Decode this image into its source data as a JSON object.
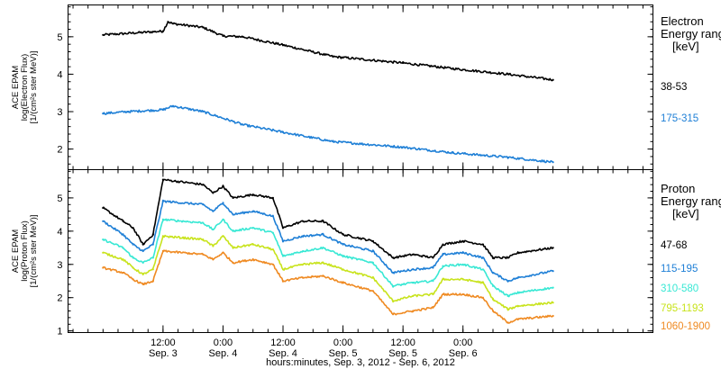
{
  "chart_data": [
    {
      "type": "scatter",
      "panel": "electron",
      "ylabel_lines": [
        "ACE EPAM",
        "log(Electron Flux)",
        "[1/(cm²s ster MeV)]"
      ],
      "ylim": [
        1.45,
        5.85
      ],
      "yticks": [
        2,
        3,
        4,
        5
      ],
      "legend": {
        "title_lines": [
          "Electron",
          "Energy range",
          "[keV]"
        ]
      },
      "series": [
        {
          "name": "38-53",
          "color": "#000000",
          "x": [
            0,
            12,
            13,
            14,
            20,
            24,
            28,
            36,
            46,
            60,
            70,
            81,
            90
          ],
          "y": [
            5.05,
            5.15,
            5.4,
            5.35,
            5.25,
            5.02,
            5.0,
            4.78,
            4.47,
            4.3,
            4.15,
            4.0,
            3.85
          ]
        },
        {
          "name": "175-315",
          "color": "#1e7fd6",
          "x": [
            0,
            5,
            12,
            14,
            20,
            28,
            36,
            46,
            60,
            70,
            81,
            90
          ],
          "y": [
            2.95,
            3.0,
            3.05,
            3.15,
            3.0,
            2.65,
            2.45,
            2.2,
            2.05,
            1.9,
            1.78,
            1.65
          ]
        }
      ]
    },
    {
      "type": "scatter",
      "panel": "proton",
      "ylabel_lines": [
        "ACE EPAM",
        "log(Proton Flux)",
        "[1/(cm²s ster MeV)]"
      ],
      "xlabel": "hours:minutes, Sep.  3, 2012 - Sep.  6, 2012",
      "ylim": [
        0.95,
        5.85
      ],
      "yticks": [
        1,
        2,
        3,
        4,
        5
      ],
      "xlim": [
        -7,
        110
      ],
      "xticks": [
        {
          "x": 12,
          "time": "12:00",
          "date": "Sep. 3"
        },
        {
          "x": 24,
          "time": "0:00",
          "date": "Sep. 4"
        },
        {
          "x": 36,
          "time": "12:00",
          "date": "Sep. 4"
        },
        {
          "x": 48,
          "time": "0:00",
          "date": "Sep. 5"
        },
        {
          "x": 60,
          "time": "12:00",
          "date": "Sep. 5"
        },
        {
          "x": 72,
          "time": "0:00",
          "date": "Sep. 6"
        }
      ],
      "legend": {
        "title_lines": [
          "Proton",
          "Energy range",
          "[keV]"
        ]
      },
      "series": [
        {
          "name": "47-68",
          "color": "#000000",
          "x": [
            0,
            4,
            6,
            8,
            10,
            12,
            20,
            22,
            24,
            26,
            30,
            34,
            36,
            40,
            44,
            48,
            54,
            58,
            62,
            66,
            68,
            72,
            76,
            78,
            81,
            83,
            90
          ],
          "y": [
            4.7,
            4.3,
            4.1,
            3.6,
            3.9,
            5.55,
            5.4,
            5.15,
            5.35,
            5.0,
            5.1,
            5.0,
            4.1,
            4.3,
            4.3,
            3.9,
            3.7,
            3.2,
            3.3,
            3.2,
            3.6,
            3.7,
            3.6,
            3.2,
            3.2,
            3.35,
            3.5
          ]
        },
        {
          "name": "115-195",
          "color": "#1e7fd6",
          "x": [
            0,
            4,
            6,
            8,
            10,
            12,
            20,
            22,
            24,
            26,
            30,
            34,
            36,
            40,
            44,
            48,
            54,
            58,
            62,
            66,
            68,
            72,
            76,
            78,
            81,
            83,
            90
          ],
          "y": [
            4.3,
            3.9,
            3.6,
            3.4,
            3.6,
            4.9,
            4.8,
            4.6,
            4.85,
            4.5,
            4.6,
            4.45,
            3.7,
            3.85,
            3.9,
            3.6,
            3.4,
            2.75,
            2.85,
            2.9,
            3.3,
            3.35,
            3.2,
            2.75,
            2.5,
            2.6,
            2.8
          ]
        },
        {
          "name": "310-580",
          "color": "#38e8d4",
          "x": [
            0,
            4,
            6,
            8,
            10,
            12,
            20,
            22,
            24,
            26,
            30,
            34,
            36,
            40,
            44,
            48,
            54,
            58,
            62,
            66,
            68,
            72,
            76,
            78,
            81,
            83,
            90
          ],
          "y": [
            3.75,
            3.5,
            3.2,
            3.05,
            3.2,
            4.35,
            4.25,
            4.05,
            4.35,
            4.0,
            4.1,
            3.95,
            3.25,
            3.4,
            3.5,
            3.25,
            3.05,
            2.35,
            2.45,
            2.5,
            2.95,
            3.0,
            2.85,
            2.35,
            2.05,
            2.15,
            2.3
          ]
        },
        {
          "name": "795-1193",
          "color": "#c8e31c",
          "x": [
            0,
            4,
            6,
            8,
            10,
            12,
            20,
            22,
            24,
            26,
            30,
            34,
            36,
            40,
            44,
            48,
            54,
            58,
            62,
            66,
            68,
            72,
            76,
            78,
            81,
            83,
            90
          ],
          "y": [
            3.35,
            3.15,
            2.9,
            2.7,
            2.85,
            3.85,
            3.75,
            3.55,
            3.85,
            3.5,
            3.6,
            3.45,
            2.85,
            3.0,
            3.05,
            2.85,
            2.6,
            1.9,
            2.05,
            2.1,
            2.55,
            2.55,
            2.45,
            1.95,
            1.65,
            1.75,
            1.85
          ]
        },
        {
          "name": "1060-1900",
          "color": "#ef8a22",
          "x": [
            0,
            4,
            6,
            8,
            10,
            12,
            20,
            22,
            24,
            26,
            30,
            34,
            36,
            40,
            44,
            48,
            54,
            58,
            62,
            66,
            68,
            72,
            76,
            78,
            81,
            83,
            90
          ],
          "y": [
            2.9,
            2.75,
            2.55,
            2.4,
            2.5,
            3.4,
            3.3,
            3.15,
            3.35,
            3.05,
            3.15,
            3.0,
            2.5,
            2.6,
            2.65,
            2.45,
            2.2,
            1.5,
            1.6,
            1.7,
            2.1,
            2.1,
            2.0,
            1.6,
            1.25,
            1.35,
            1.45
          ]
        }
      ]
    }
  ]
}
